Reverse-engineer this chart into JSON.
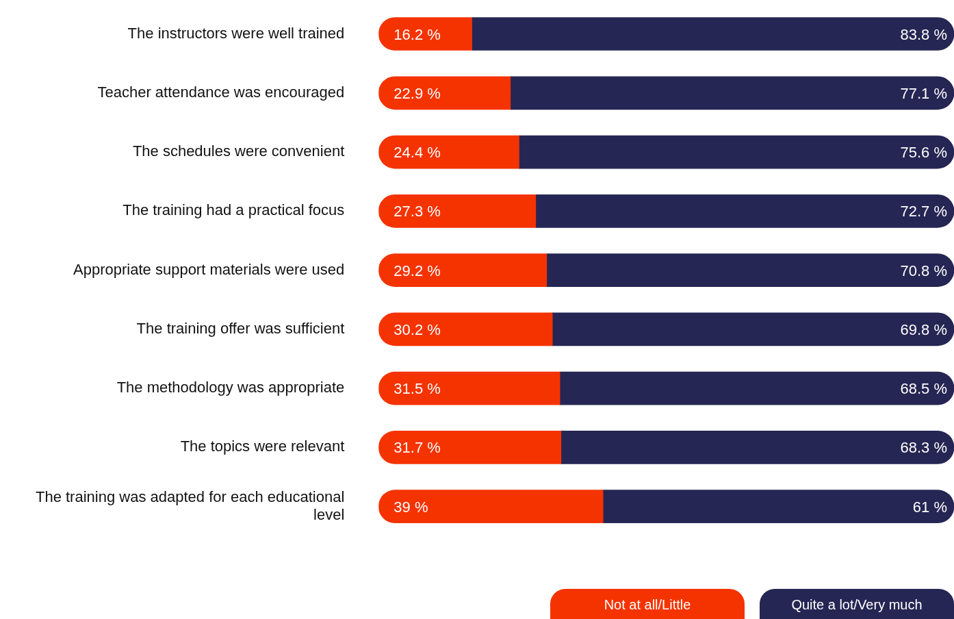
{
  "chart_data": {
    "type": "bar",
    "orientation": "horizontal",
    "stacked": true,
    "categories": [
      "The instructors were well trained",
      "Teacher attendance was encouraged",
      "The schedules were convenient",
      "The training had a practical focus",
      "Appropriate support materials were used",
      "The training offer was sufficient",
      "The methodology was appropriate",
      "The topics were relevant",
      "The training was adapted for each educational level"
    ],
    "series": [
      {
        "name": "Not at all/Little",
        "color": "#f53300",
        "values": [
          16.2,
          22.9,
          24.4,
          27.3,
          29.2,
          30.2,
          31.5,
          31.7,
          39
        ],
        "value_labels": [
          "16.2 %",
          "22.9 %",
          "24.4 %",
          "27.3 %",
          "29.2 %",
          "30.2 %",
          "31.5 %",
          "31.7 %",
          "39 %"
        ]
      },
      {
        "name": "Quite a lot/Very much",
        "color": "#262654",
        "values": [
          83.8,
          77.1,
          75.6,
          72.7,
          70.8,
          69.8,
          68.5,
          68.3,
          61
        ],
        "value_labels": [
          "83.8 %",
          "77.1 %",
          "75.6 %",
          "72.7 %",
          "70.8 %",
          "69.8 %",
          "68.5 %",
          "68.3 %",
          "61 %"
        ]
      }
    ],
    "xlim": [
      0,
      100
    ],
    "tick_labels": "y",
    "legend": "bottom right"
  }
}
